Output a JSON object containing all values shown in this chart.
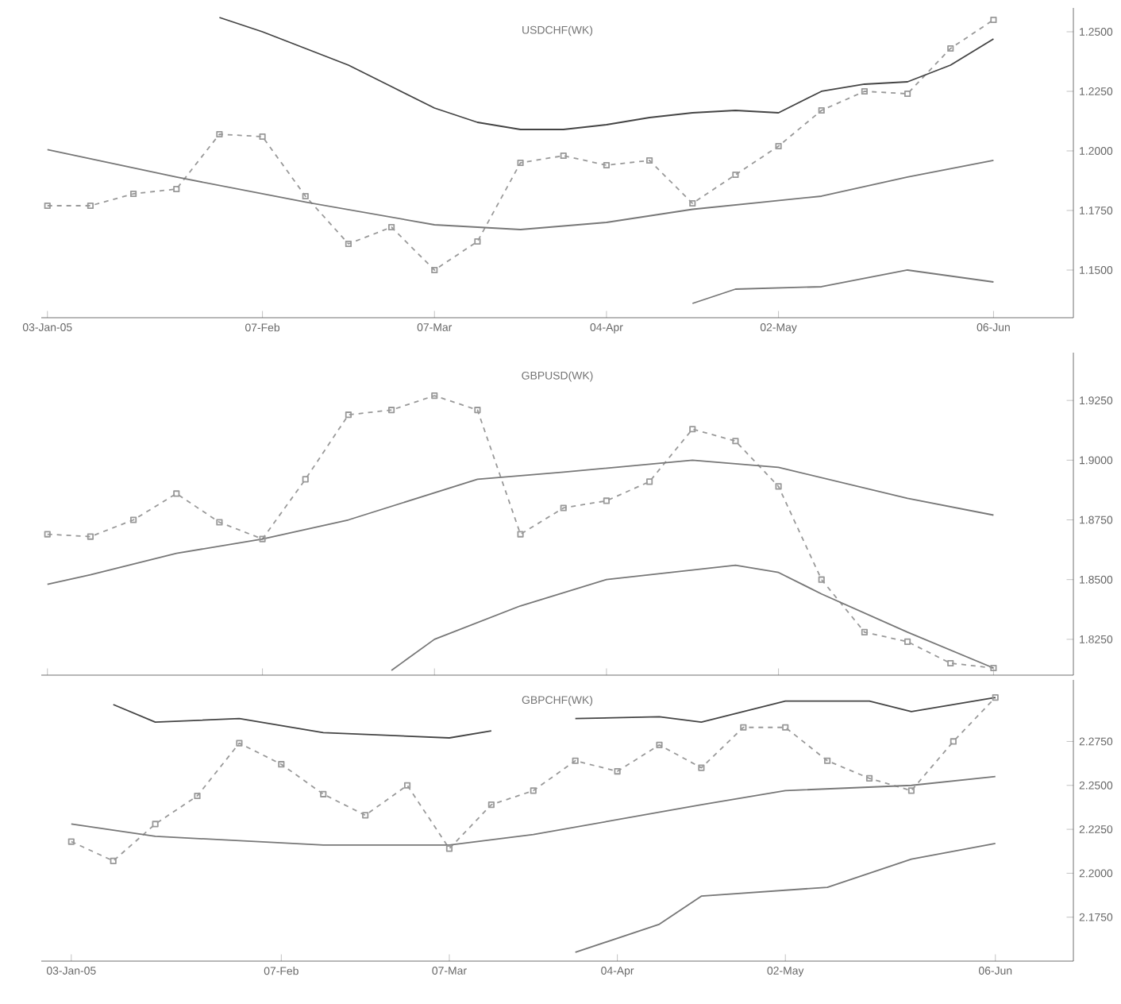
{
  "chart_data": [
    {
      "type": "line",
      "title": "USDCHF(WK)",
      "grid": false,
      "xlim": [
        "2005-01-02",
        "2005-06-19"
      ],
      "ylim": [
        1.13,
        1.26
      ],
      "xticks": [
        {
          "value": "2005-01-03",
          "label": "03-Jan-05"
        },
        {
          "value": "2005-02-07",
          "label": "07-Feb"
        },
        {
          "value": "2005-03-07",
          "label": "07-Mar"
        },
        {
          "value": "2005-04-04",
          "label": "04-Apr"
        },
        {
          "value": "2005-05-02",
          "label": "02-May"
        },
        {
          "value": "2005-06-06",
          "label": "06-Jun"
        }
      ],
      "yticks": [
        {
          "value": 1.15,
          "label": "1.1500"
        },
        {
          "value": 1.175,
          "label": "1.1750"
        },
        {
          "value": 1.2,
          "label": "1.2000"
        },
        {
          "value": 1.225,
          "label": "1.2250"
        },
        {
          "value": 1.25,
          "label": "1.2500"
        }
      ],
      "series": [
        {
          "color": "#999999",
          "marker": "square",
          "line_style": "dashed",
          "x": [
            "2005-01-03",
            "2005-01-10",
            "2005-01-17",
            "2005-01-24",
            "2005-01-31",
            "2005-02-07",
            "2005-02-14",
            "2005-02-21",
            "2005-02-28",
            "2005-03-07",
            "2005-03-14",
            "2005-03-21",
            "2005-03-28",
            "2005-04-04",
            "2005-04-11",
            "2005-04-18",
            "2005-04-25",
            "2005-05-02",
            "2005-05-09",
            "2005-05-16",
            "2005-05-23",
            "2005-05-30",
            "2005-06-06"
          ],
          "values": [
            1.177,
            1.177,
            1.182,
            1.184,
            1.207,
            1.206,
            1.181,
            1.161,
            1.168,
            1.15,
            1.162,
            1.195,
            1.198,
            1.194,
            1.196,
            1.178,
            1.19,
            1.202,
            1.217,
            1.225,
            1.224,
            1.243,
            1.255
          ]
        },
        {
          "color": "#444444",
          "marker": "none",
          "line_style": "solid",
          "x": [
            "2005-01-31",
            "2005-02-07",
            "2005-02-14",
            "2005-02-21",
            "2005-02-28",
            "2005-03-07",
            "2005-03-14",
            "2005-03-21",
            "2005-03-28",
            "2005-04-04",
            "2005-04-11",
            "2005-04-18",
            "2005-04-25",
            "2005-05-02",
            "2005-05-09",
            "2005-05-16",
            "2005-05-23",
            "2005-05-30",
            "2005-06-06"
          ],
          "values": [
            1.256,
            1.25,
            1.243,
            1.236,
            1.227,
            1.218,
            1.212,
            1.209,
            1.209,
            1.211,
            1.214,
            1.216,
            1.217,
            1.216,
            1.225,
            1.228,
            1.229,
            1.236,
            1.247
          ]
        },
        {
          "color": "#777777",
          "marker": "none",
          "line_style": "solid",
          "x": [
            "2005-01-03",
            "2005-01-24",
            "2005-02-14",
            "2005-03-07",
            "2005-03-21",
            "2005-04-04",
            "2005-04-18",
            "2005-05-09",
            "2005-05-23",
            "2005-06-06"
          ],
          "values": [
            1.2005,
            1.189,
            1.1785,
            1.169,
            1.167,
            1.17,
            1.1755,
            1.181,
            1.189,
            1.196
          ]
        },
        {
          "color": "#777777",
          "marker": "none",
          "line_style": "solid",
          "x": [
            "2005-04-18",
            "2005-04-25",
            "2005-05-09",
            "2005-05-23",
            "2005-06-06"
          ],
          "values": [
            1.136,
            1.142,
            1.143,
            1.15,
            1.145
          ]
        }
      ]
    },
    {
      "type": "line",
      "title": "GBPUSD(WK)",
      "grid": false,
      "tick_labels": "y",
      "xlim": [
        "2005-01-02",
        "2005-06-19"
      ],
      "ylim": [
        1.81,
        1.945
      ],
      "xticks": [
        {
          "value": "2005-01-03",
          "label": null
        },
        {
          "value": "2005-02-07",
          "label": null
        },
        {
          "value": "2005-03-07",
          "label": null
        },
        {
          "value": "2005-04-04",
          "label": null
        },
        {
          "value": "2005-05-02",
          "label": null
        },
        {
          "value": "2005-06-06",
          "label": null
        }
      ],
      "yticks": [
        {
          "value": 1.825,
          "label": "1.8250"
        },
        {
          "value": 1.85,
          "label": "1.8500"
        },
        {
          "value": 1.875,
          "label": "1.8750"
        },
        {
          "value": 1.9,
          "label": "1.9000"
        },
        {
          "value": 1.925,
          "label": "1.9250"
        }
      ],
      "series": [
        {
          "color": "#999999",
          "marker": "square",
          "line_style": "dashed",
          "x": [
            "2005-01-03",
            "2005-01-10",
            "2005-01-17",
            "2005-01-24",
            "2005-01-31",
            "2005-02-07",
            "2005-02-14",
            "2005-02-21",
            "2005-02-28",
            "2005-03-07",
            "2005-03-14",
            "2005-03-21",
            "2005-03-28",
            "2005-04-04",
            "2005-04-11",
            "2005-04-18",
            "2005-04-25",
            "2005-05-02",
            "2005-05-09",
            "2005-05-16",
            "2005-05-23",
            "2005-05-30",
            "2005-06-06"
          ],
          "values": [
            1.869,
            1.868,
            1.875,
            1.886,
            1.874,
            1.867,
            1.892,
            1.919,
            1.921,
            1.927,
            1.921,
            1.869,
            1.88,
            1.883,
            1.891,
            1.913,
            1.908,
            1.889,
            1.85,
            1.828,
            1.824,
            1.815,
            1.813
          ]
        },
        {
          "color": "#777777",
          "marker": "none",
          "line_style": "solid",
          "x": [
            "2005-01-03",
            "2005-01-10",
            "2005-01-24",
            "2005-02-07",
            "2005-02-21",
            "2005-03-14",
            "2005-03-28",
            "2005-04-18",
            "2005-05-02",
            "2005-05-23",
            "2005-06-06"
          ],
          "values": [
            1.848,
            1.852,
            1.861,
            1.867,
            1.875,
            1.892,
            1.895,
            1.9,
            1.897,
            1.884,
            1.877
          ]
        },
        {
          "color": "#777777",
          "marker": "none",
          "line_style": "solid",
          "x": [
            "2005-02-28",
            "2005-03-07",
            "2005-03-21",
            "2005-04-04",
            "2005-04-25",
            "2005-05-02",
            "2005-05-09",
            "2005-05-23",
            "2005-06-06"
          ],
          "values": [
            1.812,
            1.825,
            1.839,
            1.85,
            1.856,
            1.853,
            1.844,
            1.828,
            1.813
          ]
        }
      ]
    },
    {
      "type": "line",
      "title": "GBPCHF(WK)",
      "grid": false,
      "xlim": [
        "2004-12-29",
        "2005-06-19"
      ],
      "ylim": [
        2.15,
        2.31
      ],
      "xticks": [
        {
          "value": "2005-01-03",
          "label": "03-Jan-05"
        },
        {
          "value": "2005-02-07",
          "label": "07-Feb"
        },
        {
          "value": "2005-03-07",
          "label": "07-Mar"
        },
        {
          "value": "2005-04-04",
          "label": "04-Apr"
        },
        {
          "value": "2005-05-02",
          "label": "02-May"
        },
        {
          "value": "2005-06-06",
          "label": "06-Jun"
        }
      ],
      "yticks": [
        {
          "value": 2.175,
          "label": "2.1750"
        },
        {
          "value": 2.2,
          "label": "2.2000"
        },
        {
          "value": 2.225,
          "label": "2.2250"
        },
        {
          "value": 2.25,
          "label": "2.2500"
        },
        {
          "value": 2.275,
          "label": "2.2750"
        }
      ],
      "series": [
        {
          "color": "#999999",
          "marker": "square",
          "line_style": "dashed",
          "x": [
            "2005-01-03",
            "2005-01-10",
            "2005-01-17",
            "2005-01-24",
            "2005-01-31",
            "2005-02-07",
            "2005-02-14",
            "2005-02-21",
            "2005-02-28",
            "2005-03-07",
            "2005-03-14",
            "2005-03-21",
            "2005-03-28",
            "2005-04-04",
            "2005-04-11",
            "2005-04-18",
            "2005-04-25",
            "2005-05-02",
            "2005-05-09",
            "2005-05-16",
            "2005-05-23",
            "2005-05-30",
            "2005-06-06"
          ],
          "values": [
            2.218,
            2.207,
            2.228,
            2.244,
            2.274,
            2.262,
            2.245,
            2.233,
            2.25,
            2.214,
            2.239,
            2.247,
            2.264,
            2.258,
            2.273,
            2.26,
            2.283,
            2.283,
            2.264,
            2.254,
            2.247,
            2.275,
            2.3
          ]
        },
        {
          "color": "#444444",
          "marker": "none",
          "line_style": "solid",
          "x": [
            "2005-01-10",
            "2005-01-17",
            "2005-01-31",
            "2005-02-14",
            "2005-03-07",
            "2005-03-14",
            "2005-03-21",
            "2005-03-28",
            "2005-04-11",
            "2005-04-18",
            "2005-05-02",
            "2005-05-16",
            "2005-05-23",
            "2005-06-06"
          ],
          "values": [
            2.296,
            2.286,
            2.288,
            2.28,
            2.277,
            2.281,
            null,
            2.288,
            2.289,
            2.286,
            2.298,
            2.298,
            2.292,
            2.3
          ]
        },
        {
          "color": "#777777",
          "marker": "none",
          "line_style": "solid",
          "x": [
            "2005-01-03",
            "2005-01-17",
            "2005-02-14",
            "2005-03-07",
            "2005-03-21",
            "2005-04-18",
            "2005-05-02",
            "2005-05-23",
            "2005-06-06"
          ],
          "values": [
            2.228,
            2.221,
            2.216,
            2.216,
            2.222,
            2.239,
            2.247,
            2.25,
            2.255
          ]
        },
        {
          "color": "#777777",
          "marker": "none",
          "line_style": "solid",
          "x": [
            "2005-03-28",
            "2005-04-11",
            "2005-04-18",
            "2005-05-09",
            "2005-05-23",
            "2005-06-06"
          ],
          "values": [
            2.155,
            2.171,
            2.187,
            2.192,
            2.208,
            2.217
          ]
        }
      ]
    }
  ]
}
